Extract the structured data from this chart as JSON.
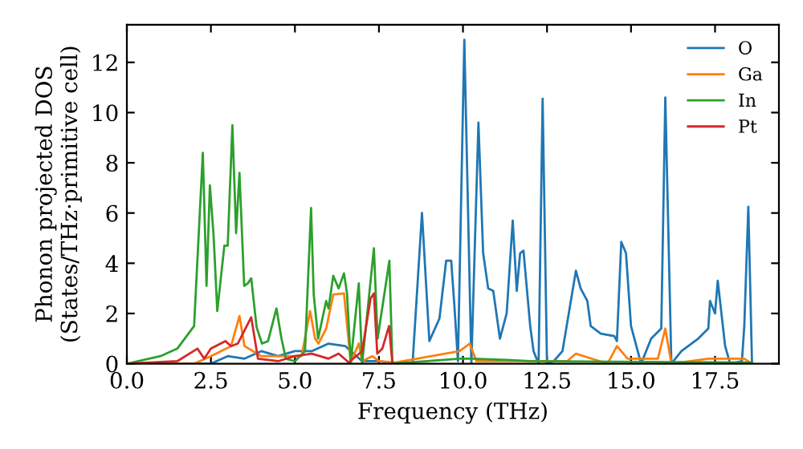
{
  "chart_data": {
    "type": "line",
    "xlabel": "Frequency (THz)",
    "ylabel": "Phonon projected DOS\n(States/THz·primitive cell)",
    "xlim": [
      0,
      19.4
    ],
    "ylim": [
      0,
      13.5
    ],
    "xticks": [
      {
        "value": 0,
        "label": "0.0"
      },
      {
        "value": 2.5,
        "label": "2.5"
      },
      {
        "value": 5,
        "label": "5.0"
      },
      {
        "value": 7.5,
        "label": "7.5"
      },
      {
        "value": 10,
        "label": "10.0"
      },
      {
        "value": 12.5,
        "label": "12.5"
      },
      {
        "value": 15,
        "label": "15.0"
      },
      {
        "value": 17.5,
        "label": "17.5"
      }
    ],
    "yticks": [
      0,
      2,
      4,
      6,
      8,
      10,
      12
    ],
    "grid": false,
    "legend": "top right",
    "series": [
      {
        "name": "O",
        "color": "#1f77b4",
        "x": [
          0,
          2.5,
          3.0,
          3.5,
          4.0,
          4.5,
          5.0,
          5.5,
          6.0,
          6.5,
          7.0,
          7.5,
          8.0,
          8.5,
          8.78,
          9.0,
          9.3,
          9.5,
          9.65,
          9.75,
          9.85,
          10.04,
          10.25,
          10.46,
          10.6,
          10.75,
          10.9,
          11.1,
          11.3,
          11.48,
          11.6,
          11.7,
          11.8,
          12.0,
          12.1,
          12.25,
          12.37,
          12.5,
          12.7,
          12.96,
          13.36,
          13.5,
          13.7,
          13.8,
          14.1,
          14.5,
          14.58,
          14.71,
          14.85,
          15.0,
          15.3,
          15.6,
          15.9,
          16.02,
          16.2,
          16.5,
          17.0,
          17.3,
          17.35,
          17.5,
          17.58,
          17.8,
          17.95,
          18.3,
          18.37,
          18.49,
          18.6
        ],
        "values": [
          0,
          0,
          0.3,
          0.2,
          0.5,
          0.3,
          0.5,
          0.5,
          0.8,
          0.7,
          0.1,
          0.1,
          0,
          0,
          6.0,
          0.9,
          1.8,
          4.1,
          4.1,
          2.2,
          0.1,
          12.9,
          0,
          9.6,
          4.4,
          3.0,
          2.9,
          1.0,
          2.0,
          5.7,
          2.9,
          4.4,
          4.5,
          1.5,
          0.5,
          0,
          10.55,
          0,
          0.1,
          0.5,
          3.7,
          3.0,
          2.5,
          1.5,
          1.2,
          1.1,
          0.9,
          4.85,
          4.4,
          1.5,
          0,
          1.0,
          1.4,
          10.6,
          0,
          0.5,
          1.0,
          1.4,
          2.5,
          2.0,
          3.3,
          0.7,
          0,
          0.1,
          1.5,
          6.25,
          0
        ]
      },
      {
        "name": "Ga",
        "color": "#ff7f0e",
        "x": [
          0,
          2.0,
          2.5,
          2.8,
          3.1,
          3.35,
          3.5,
          4.0,
          4.5,
          5.0,
          5.2,
          5.45,
          5.6,
          5.7,
          5.93,
          6.14,
          6.46,
          6.66,
          6.9,
          7.0,
          7.3,
          7.5,
          8.0,
          9.9,
          10.2,
          10.4,
          13.1,
          13.36,
          13.6,
          14.3,
          14.58,
          14.9,
          15.8,
          16.02,
          16.2,
          17.3,
          17.9,
          18.37,
          18.6
        ],
        "values": [
          0,
          0,
          0.3,
          0.5,
          0.7,
          1.9,
          0.7,
          0.3,
          0.3,
          0.3,
          0.3,
          2.1,
          1.0,
          0.8,
          1.4,
          2.75,
          2.8,
          0.05,
          0.8,
          0.1,
          0.3,
          0.1,
          0.05,
          0.5,
          0.8,
          0.1,
          0.1,
          0.4,
          0.3,
          0,
          0.7,
          0.2,
          0.2,
          1.4,
          0,
          0.2,
          0.2,
          0.2,
          0
        ]
      },
      {
        "name": "In",
        "color": "#2ca02c",
        "x": [
          0,
          1.0,
          1.5,
          2.0,
          2.26,
          2.37,
          2.47,
          2.58,
          2.69,
          2.9,
          3.0,
          3.14,
          3.25,
          3.35,
          3.49,
          3.6,
          3.7,
          3.86,
          4.02,
          4.2,
          4.45,
          4.6,
          4.73,
          5.0,
          5.3,
          5.48,
          5.56,
          5.69,
          5.93,
          6.0,
          6.14,
          6.3,
          6.46,
          6.55,
          6.66,
          6.9,
          7.0,
          7.35,
          7.46,
          7.81,
          7.9,
          9.9,
          10.3,
          11.3,
          12.0,
          18.6
        ],
        "values": [
          0,
          0.3,
          0.6,
          1.5,
          8.4,
          3.1,
          7.1,
          5.1,
          2.1,
          4.7,
          4.7,
          9.5,
          5.2,
          7.6,
          3.1,
          3.2,
          3.4,
          1.45,
          0.8,
          0.9,
          2.2,
          1.0,
          0.2,
          0.1,
          0.5,
          6.2,
          2.75,
          1.0,
          2.5,
          2.2,
          3.5,
          3.0,
          3.6,
          2.8,
          0.05,
          3.2,
          0,
          4.6,
          1.0,
          4.1,
          0,
          0.2,
          0.2,
          0.15,
          0.1,
          0.05
        ]
      },
      {
        "name": "Pt",
        "color": "#d62728",
        "x": [
          0,
          1.5,
          2.1,
          2.3,
          2.5,
          2.93,
          3.1,
          3.3,
          3.7,
          3.9,
          4.5,
          5.0,
          5.5,
          6.0,
          6.3,
          6.6,
          7.0,
          7.25,
          7.35,
          7.45,
          7.6,
          7.8,
          7.9
        ],
        "values": [
          0,
          0.1,
          0.6,
          0.2,
          0.6,
          0.9,
          0.7,
          0.8,
          1.85,
          0.2,
          0.1,
          0.3,
          0.4,
          0.2,
          0.4,
          0.05,
          0.5,
          2.6,
          2.8,
          0.4,
          0.6,
          1.5,
          0
        ]
      }
    ]
  }
}
